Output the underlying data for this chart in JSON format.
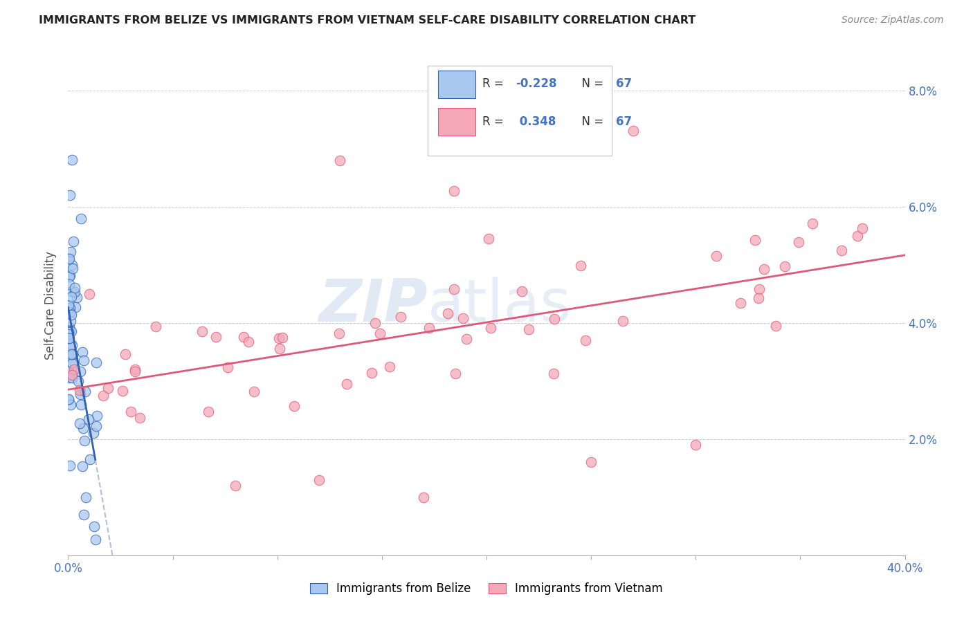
{
  "title": "IMMIGRANTS FROM BELIZE VS IMMIGRANTS FROM VIETNAM SELF-CARE DISABILITY CORRELATION CHART",
  "source": "Source: ZipAtlas.com",
  "ylabel_left": "Self-Care Disability",
  "x_min": 0.0,
  "x_max": 0.4,
  "y_min": 0.0,
  "y_max": 0.086,
  "right_ytick_labels": [
    "2.0%",
    "4.0%",
    "6.0%",
    "8.0%"
  ],
  "right_yticks": [
    0.02,
    0.04,
    0.06,
    0.08
  ],
  "color_belize": "#A8C8F0",
  "color_vietnam": "#F4A8B8",
  "color_belize_line": "#3060B0",
  "color_vietnam_line": "#E05878",
  "color_dashed": "#B0C0D8",
  "R_belize": -0.228,
  "N_belize": 67,
  "R_vietnam": 0.348,
  "N_vietnam": 67,
  "watermark1": "ZIP",
  "watermark2": "atlas",
  "legend_R_belize": "R = -0.228",
  "legend_N_belize": "N = 67",
  "legend_R_vietnam": "R =  0.348",
  "legend_N_vietnam": "N = 67"
}
